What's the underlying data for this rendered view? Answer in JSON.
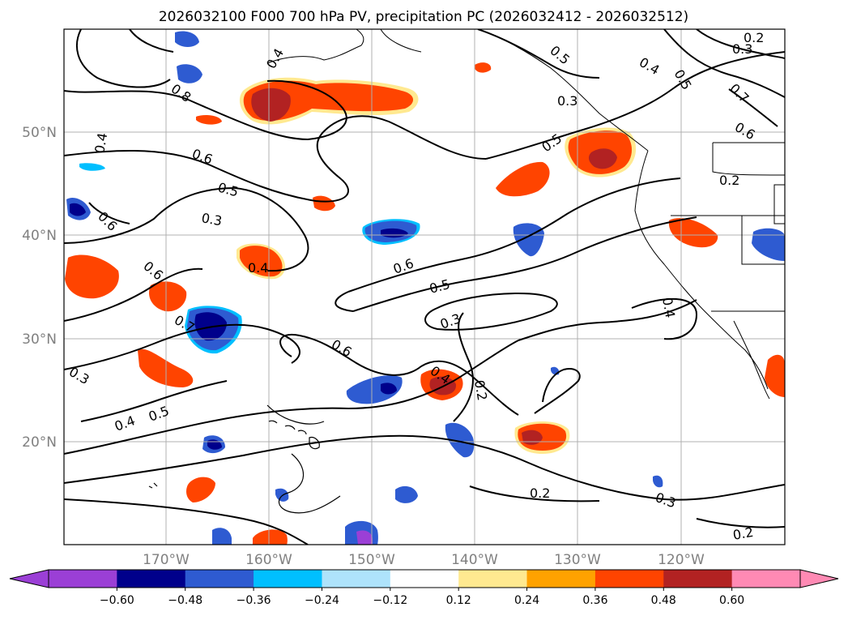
{
  "title": "2026032100 F000 700 hPa PV, precipitation PC (2026032412 - 2026032512)",
  "map": {
    "lat_ticks": [
      "50°N",
      "40°N",
      "30°N",
      "20°N"
    ],
    "lon_ticks": [
      "170°W",
      "160°W",
      "150°W",
      "140°W",
      "130°W",
      "120°W"
    ],
    "contour_labels": [
      "0.2",
      "0.3",
      "0.4",
      "0.5",
      "0.6",
      "0.7",
      "0.8"
    ]
  },
  "colorbar": {
    "labels": [
      "−0.60",
      "−0.48",
      "−0.36",
      "−0.24",
      "−0.12",
      "0.12",
      "0.24",
      "0.36",
      "0.48",
      "0.60"
    ],
    "colors": [
      "#9b3fd6",
      "#00008b",
      "#2e5bd1",
      "#00bfff",
      "#aee3fb",
      "#ffffff",
      "#ffe990",
      "#ffa200",
      "#ff4400",
      "#b22222",
      "#ff8ab4",
      "#ff8ab4"
    ]
  }
}
